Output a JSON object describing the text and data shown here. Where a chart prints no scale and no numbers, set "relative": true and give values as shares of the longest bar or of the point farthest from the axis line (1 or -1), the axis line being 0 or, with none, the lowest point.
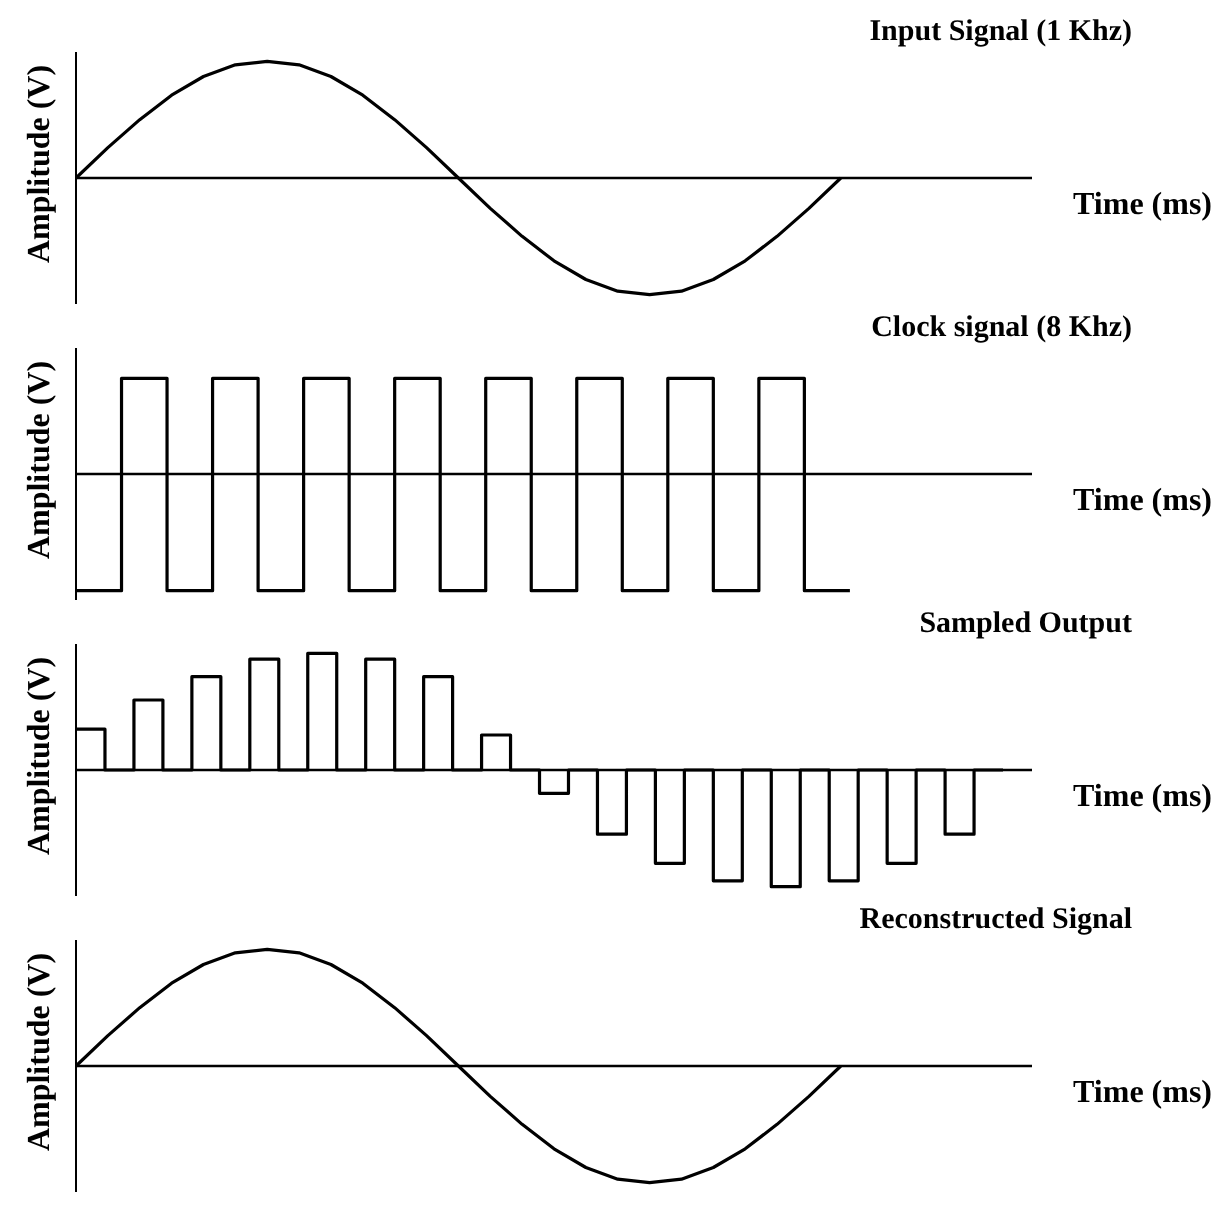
{
  "chart_data": [
    {
      "type": "line",
      "title": "Input Signal (1 Khz)",
      "xlabel": "Time (ms)",
      "ylabel": "Amplitude (V)",
      "relative": true,
      "color": "#000000",
      "categories": [
        null,
        null,
        null,
        null,
        null,
        null,
        null,
        null,
        null,
        null,
        null,
        null,
        null,
        null,
        null,
        null,
        null,
        null,
        null,
        null,
        null,
        null,
        null,
        null,
        null,
        null,
        null,
        null,
        null,
        null,
        null
      ],
      "values": [
        0,
        0.26,
        0.5,
        0.71,
        0.87,
        0.97,
        1,
        0.97,
        0.87,
        0.71,
        0.5,
        0.26,
        0,
        -0.26,
        -0.5,
        -0.71,
        -0.87,
        -0.97,
        -1,
        -0.97,
        -0.87,
        -0.71,
        -0.5,
        -0.26,
        0,
        null,
        null,
        null,
        null,
        null,
        null
      ]
    },
    {
      "type": "step",
      "title": "Clock signal (8 Khz)",
      "xlabel": "Time (ms)",
      "ylabel": "Amplitude (V)",
      "relative": true,
      "color": "#000000",
      "categories": [
        null,
        null,
        null,
        null,
        null,
        null,
        null,
        null,
        null,
        null,
        null,
        null,
        null,
        null,
        null,
        null,
        null,
        null,
        null,
        null,
        null,
        null
      ],
      "values": [
        -1,
        0.82,
        -1,
        0.82,
        -1,
        0.82,
        -1,
        0.82,
        -1,
        0.82,
        -1,
        0.82,
        -1,
        0.82,
        -1,
        0.82,
        -1,
        -1,
        null,
        null,
        null,
        null
      ]
    },
    {
      "type": "step",
      "title": "Sampled Output",
      "xlabel": "Time (ms)",
      "ylabel": "Amplitude (V)",
      "relative": true,
      "color": "#000000",
      "categories": [
        null,
        null,
        null,
        null,
        null,
        null,
        null,
        null,
        null,
        null,
        null,
        null,
        null,
        null,
        null,
        null,
        null,
        null,
        null,
        null,
        null,
        null,
        null,
        null,
        null,
        null,
        null,
        null,
        null,
        null,
        null,
        null,
        null,
        null
      ],
      "values": [
        0.35,
        0,
        0.6,
        0,
        0.8,
        0,
        0.95,
        0,
        1,
        0,
        0.95,
        0,
        0.8,
        0,
        0.3,
        0,
        -0.2,
        0,
        -0.55,
        0,
        -0.8,
        0,
        -0.95,
        0,
        -1,
        0,
        -0.95,
        0,
        -0.8,
        0,
        -0.55,
        0,
        0,
        null
      ]
    },
    {
      "type": "line",
      "title": "Reconstructed Signal",
      "xlabel": "Time (ms)",
      "ylabel": "Amplitude (V)",
      "relative": true,
      "color": "#000000",
      "categories": [
        null,
        null,
        null,
        null,
        null,
        null,
        null,
        null,
        null,
        null,
        null,
        null,
        null,
        null,
        null,
        null,
        null,
        null,
        null,
        null,
        null,
        null,
        null,
        null,
        null,
        null,
        null,
        null,
        null,
        null,
        null
      ],
      "values": [
        0,
        0.26,
        0.5,
        0.71,
        0.87,
        0.97,
        1,
        0.97,
        0.87,
        0.71,
        0.5,
        0.26,
        0,
        -0.26,
        -0.5,
        -0.71,
        -0.87,
        -0.97,
        -1,
        -0.97,
        -0.87,
        -0.71,
        -0.5,
        -0.26,
        0,
        null,
        null,
        null,
        null,
        null,
        null
      ]
    }
  ]
}
